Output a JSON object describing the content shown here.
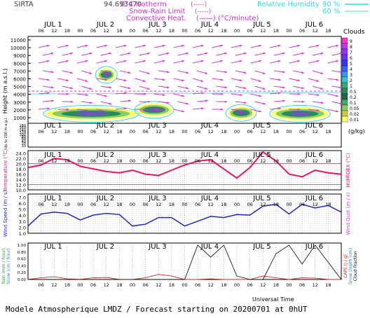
{
  "header": {
    "site": "SIRTA",
    "coords": "94.693470",
    "isotherm_label": "0°C Isotherm",
    "isotherm_sym": "(-----)",
    "snowrain_label": "Snow-Rain Limit",
    "snowrain_sym": "(-----)",
    "convective_label": "Convective Heat.",
    "convective_sym": "(——) (°C/minute)",
    "rh_label": "Relative Humidity",
    "rh_90": "90 %",
    "rh_60": "60 %"
  },
  "days": [
    "JUL 1",
    "JUL 2",
    "JUL 3",
    "JUL 4",
    "JUL 5",
    "JUL 6"
  ],
  "hour_ticks": [
    "06",
    "12",
    "18",
    "00",
    "06",
    "12",
    "18",
    "00",
    "06",
    "12",
    "18",
    "00",
    "06",
    "12",
    "18",
    "00",
    "06",
    "12",
    "18",
    "00",
    "06",
    "12",
    "18"
  ],
  "panels": {
    "height": {
      "ylabel": "Height (m a.s.l.)",
      "ylabel2": "Up to 200 m a.g.l.",
      "yticks": [
        "11000",
        "10000",
        "9000",
        "8000",
        "7000",
        "6000",
        "5000",
        "4000",
        "3000",
        "2000",
        "1000"
      ],
      "low_ticks": [
        "180",
        "160",
        "140",
        "120",
        "100",
        "80",
        "60",
        "40",
        "20",
        "10"
      ]
    },
    "temperature": {
      "ylabel": "Temperature (°C)",
      "right_label": "HUMIDEX (°C)",
      "yticks": [
        "24.0",
        "22.0",
        "20.0",
        "18.0",
        "16.0",
        "14.0",
        "12.0",
        "10.0"
      ]
    },
    "wind": {
      "ylabel": "Wind Speed (m / s)",
      "right_label": "Wind Gust (m / s)",
      "yticks": [
        "7.0",
        "6.0",
        "5.0",
        "4.0",
        "3.0",
        "2.0",
        "1.0"
      ]
    },
    "precip": {
      "ylabel1": "Rain (mm / hour)",
      "ylabel2": "Snow (cm / hour)",
      "right1": "CAPE (J / g)",
      "right2": "Snow Depth (cm)",
      "right3": "Cloud Fraction",
      "yticks": [
        "1.00",
        "0.80",
        "0.60",
        "0.40",
        "0.20",
        "0.00"
      ]
    }
  },
  "colorbar": {
    "title": "Clouds",
    "units": "(g/kg)",
    "labels": [
      "9",
      "8",
      "7",
      "6",
      "5",
      "4",
      "3",
      "2",
      "1",
      "0.5",
      "0.2",
      "0.1",
      "0.05",
      "0.02",
      "0.01"
    ],
    "colors": [
      "#ff33cc",
      "#cc33ff",
      "#9933ff",
      "#6633ff",
      "#3333ff",
      "#3366ff",
      "#3399ff",
      "#33cccc",
      "#33aa77",
      "#2a8a5a",
      "#226644",
      "#44aa66",
      "#88cc66",
      "#cccc44",
      "#ffff66"
    ]
  },
  "x_title": "Universal Time",
  "footer": "Modele Atmospherique LMDZ / Forecast starting on 20200701 at 0hUT",
  "chart_data": {
    "type": "line",
    "x_hours": [
      0,
      6,
      12,
      18,
      24,
      30,
      36,
      42,
      48,
      54,
      60,
      66,
      72,
      78,
      84,
      90,
      96,
      102,
      108,
      114,
      120,
      126,
      132,
      138,
      144
    ],
    "series": [
      {
        "name": "Temperature",
        "unit": "°C",
        "values": [
          18.5,
          19.5,
          22.0,
          21.5,
          19.0,
          18.0,
          17.0,
          16.5,
          17.5,
          16.0,
          15.5,
          17.5,
          19.5,
          21.0,
          21.5,
          18.0,
          14.5,
          18.5,
          24.5,
          21.0,
          16.0,
          15.0,
          17.5,
          16.5,
          16.0
        ]
      },
      {
        "name": "Wind Speed",
        "unit": "m/s",
        "values": [
          2.2,
          4.2,
          4.5,
          4.3,
          3.2,
          4.0,
          4.3,
          4.1,
          2.2,
          2.5,
          3.6,
          3.6,
          2.2,
          3.0,
          3.8,
          3.6,
          4.1,
          4.0,
          5.5,
          5.8,
          4.2,
          5.8,
          5.2,
          5.6,
          4.5
        ]
      },
      {
        "name": "Rain",
        "unit": "mm/hour",
        "values": [
          0.0,
          0.05,
          0.08,
          0.02,
          0.0,
          0.05,
          0.06,
          0.0,
          0.0,
          0.05,
          0.15,
          0.1,
          0.0,
          0.0,
          0.02,
          0.0,
          0.0,
          0.0,
          0.1,
          0.05,
          0.0,
          0.05,
          0.04,
          0.0,
          0.0
        ]
      },
      {
        "name": "Cloud Fraction",
        "unit": "",
        "values": [
          0,
          0,
          0,
          0,
          0,
          0,
          0,
          0,
          0,
          0,
          0,
          0,
          0,
          1.0,
          0.65,
          1.0,
          0.1,
          0.0,
          0.0,
          0.75,
          1.0,
          0.45,
          1.0,
          0.5,
          0.0
        ]
      }
    ],
    "temperature_ylim": [
      10,
      25
    ],
    "wind_ylim": [
      1,
      7
    ],
    "precip_ylim": [
      0,
      1
    ],
    "cloud_blobs": [
      {
        "x_hours": [
          8,
          50
        ],
        "height_m": 1500
      },
      {
        "x_hours": [
          50,
          66
        ],
        "height_m": 2000
      },
      {
        "x_hours": [
          92,
          104
        ],
        "height_m": 1600
      },
      {
        "x_hours": [
          112,
          138
        ],
        "height_m": 1500
      },
      {
        "x_hours": [
          32,
          40
        ],
        "height_m": 6500
      }
    ],
    "isotherm_height_m": 4400
  }
}
